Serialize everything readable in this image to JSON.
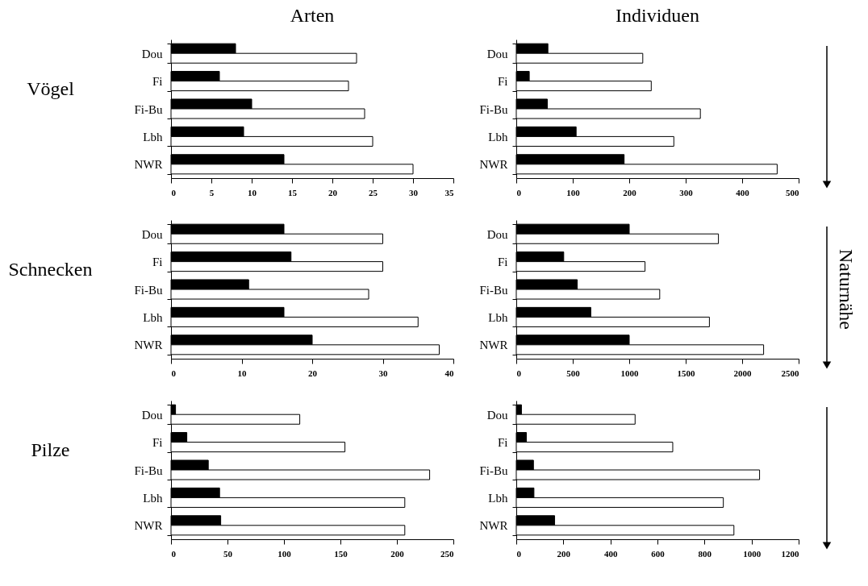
{
  "chart_data": [
    {
      "type": "bar",
      "orientation": "horizontal",
      "title": "Arten",
      "ylabel": "Vögel",
      "categories": [
        "Dou",
        "Fi",
        "Fi-Bu",
        "Lbh",
        "NWR"
      ],
      "xlim": [
        0,
        35
      ],
      "xticks": [
        0,
        5,
        10,
        15,
        20,
        25,
        30,
        35
      ],
      "series": [
        {
          "color": "#000000",
          "values": [
            8,
            6,
            10,
            9,
            14
          ]
        },
        {
          "color": "#ffffff",
          "values": [
            23,
            22,
            24,
            25,
            30
          ]
        }
      ]
    },
    {
      "type": "bar",
      "orientation": "horizontal",
      "title": "Individuen",
      "categories": [
        "Dou",
        "Fi",
        "Fi-Bu",
        "Lbh",
        "NWR"
      ],
      "xlim": [
        0,
        500
      ],
      "xticks": [
        0,
        100,
        200,
        300,
        400,
        500
      ],
      "series": [
        {
          "color": "#000000",
          "values": [
            56,
            23,
            55,
            106,
            191
          ]
        },
        {
          "color": "#ffffff",
          "values": [
            224,
            239,
            326,
            279,
            462
          ]
        }
      ]
    },
    {
      "type": "bar",
      "orientation": "horizontal",
      "ylabel": "Schnecken",
      "categories": [
        "Dou",
        "Fi",
        "Fi-Bu",
        "Lbh",
        "NWR"
      ],
      "xlim": [
        0,
        40
      ],
      "xticks": [
        0,
        10,
        20,
        30,
        40
      ],
      "series": [
        {
          "color": "#000000",
          "values": [
            16,
            17,
            11,
            16,
            20
          ]
        },
        {
          "color": "#ffffff",
          "values": [
            30,
            30,
            28,
            35,
            38
          ]
        }
      ]
    },
    {
      "type": "bar",
      "orientation": "horizontal",
      "categories": [
        "Dou",
        "Fi",
        "Fi-Bu",
        "Lbh",
        "NWR"
      ],
      "xlim": [
        0,
        2500
      ],
      "xticks": [
        0,
        500,
        1000,
        1500,
        2000,
        2500
      ],
      "annotations": [
        "Naturnähe"
      ],
      "series": [
        {
          "color": "#000000",
          "values": [
            1000,
            420,
            540,
            660,
            1000
          ]
        },
        {
          "color": "#ffffff",
          "values": [
            1790,
            1140,
            1270,
            1710,
            2190
          ]
        }
      ]
    },
    {
      "type": "bar",
      "orientation": "horizontal",
      "ylabel": "Pilze",
      "categories": [
        "Dou",
        "Fi",
        "Fi-Bu",
        "Lbh",
        "NWR"
      ],
      "xlim": [
        0,
        250
      ],
      "xticks": [
        0,
        50,
        100,
        150,
        200,
        250
      ],
      "series": [
        {
          "color": "#000000",
          "values": [
            4,
            14,
            33,
            43,
            44
          ]
        },
        {
          "color": "#ffffff",
          "values": [
            114,
            154,
            229,
            207,
            207
          ]
        }
      ]
    },
    {
      "type": "bar",
      "orientation": "horizontal",
      "categories": [
        "Dou",
        "Fi",
        "Fi-Bu",
        "Lbh",
        "NWR"
      ],
      "xlim": [
        0,
        1200
      ],
      "xticks": [
        0,
        200,
        400,
        600,
        800,
        1000,
        1200
      ],
      "series": [
        {
          "color": "#000000",
          "values": [
            22,
            43,
            73,
            75,
            163
          ]
        },
        {
          "color": "#ffffff",
          "values": [
            505,
            665,
            1034,
            880,
            925
          ]
        }
      ]
    }
  ]
}
